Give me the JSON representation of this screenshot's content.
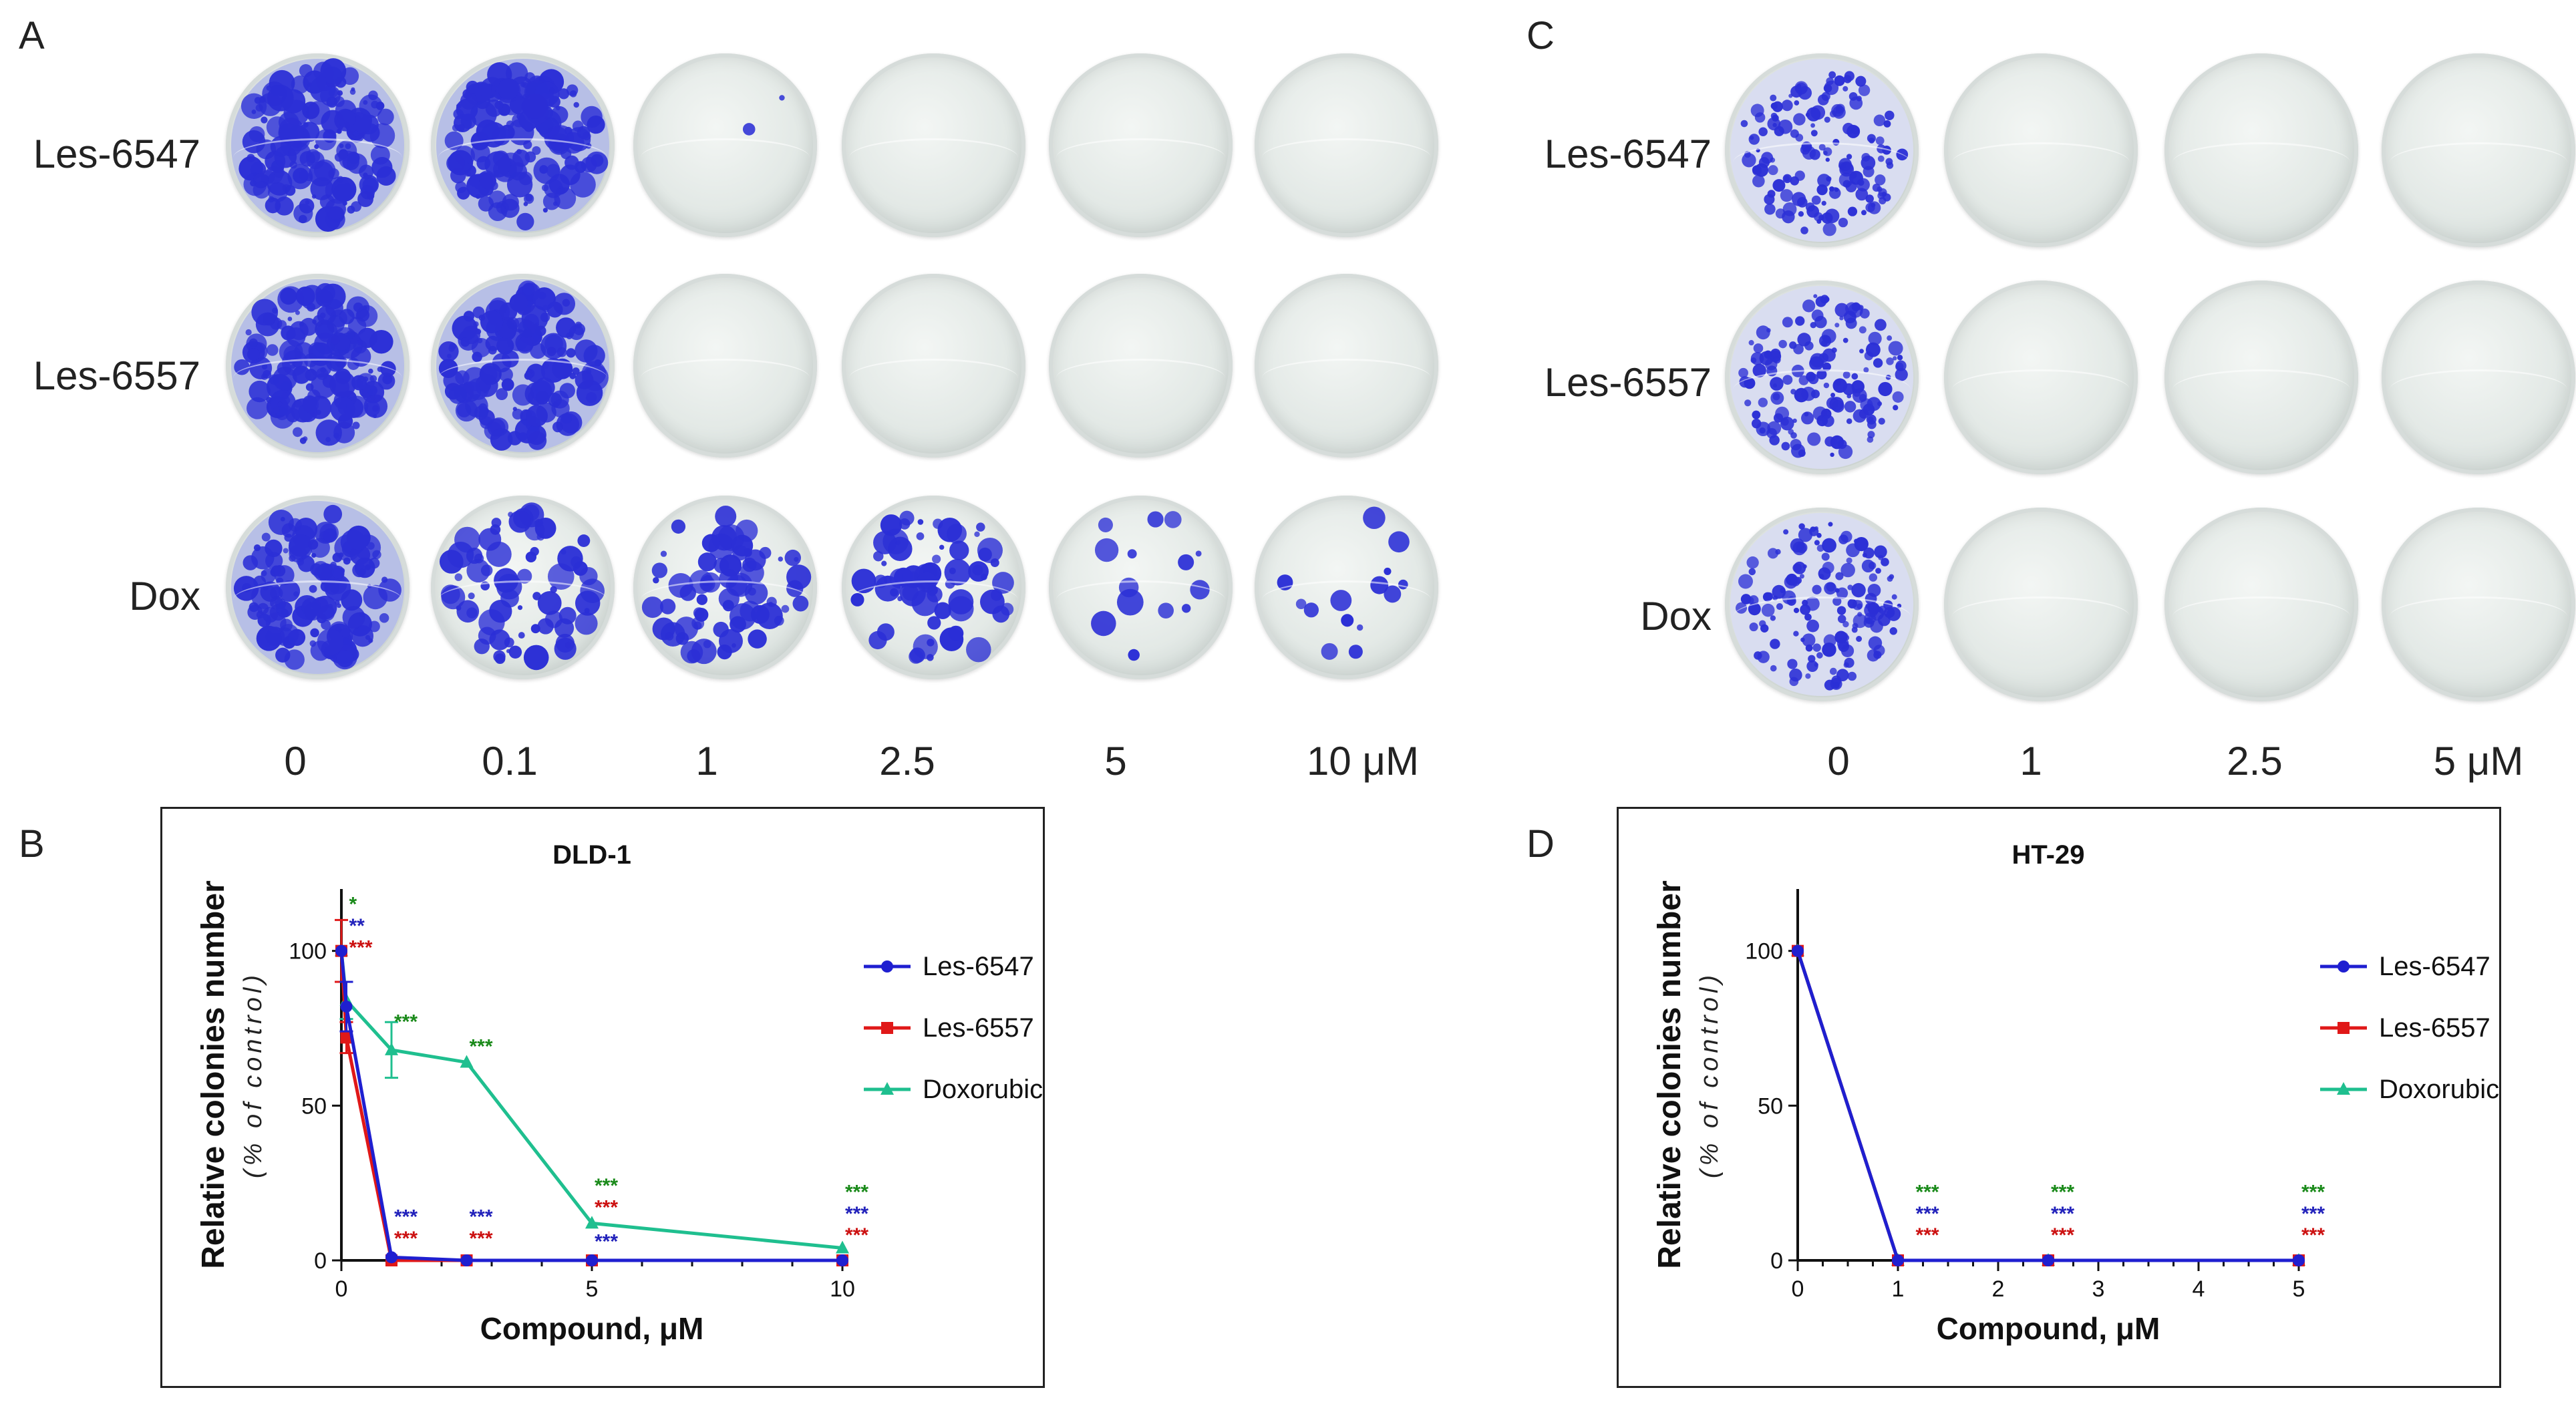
{
  "panels": {
    "a": {
      "letter": "A",
      "rows": [
        "Les-6547",
        "Les-6557",
        "Dox"
      ],
      "doses": [
        "0",
        "0.1",
        "1",
        "2.5",
        "5",
        "10 μM"
      ]
    },
    "b": {
      "letter": "B"
    },
    "c": {
      "letter": "C",
      "rows": [
        "Les-6547",
        "Les-6557",
        "Dox"
      ],
      "doses": [
        "0",
        "1",
        "2.5",
        "5 μM"
      ]
    },
    "d": {
      "letter": "D"
    }
  },
  "plate_colonies": {
    "a": [
      [
        "high",
        "high",
        "trace",
        "none",
        "none",
        "none"
      ],
      [
        "high",
        "high",
        "none",
        "none",
        "none",
        "none"
      ],
      [
        "high",
        "medium",
        "medium",
        "medium",
        "sparse",
        "sparse"
      ]
    ],
    "c": [
      [
        "high",
        "none",
        "none",
        "none"
      ],
      [
        "high",
        "none",
        "none",
        "none"
      ],
      [
        "high",
        "none",
        "none",
        "none"
      ]
    ]
  },
  "colors": {
    "stain": "#2b2fd6",
    "les6547": "#1f1fd0",
    "les6557": "#e01818",
    "doxorubicin": "#1fbf8f",
    "sig_green": "#1a8a1a",
    "sig_blue": "#2222bb",
    "sig_red": "#cc1111"
  },
  "chart_data": [
    {
      "panel": "B",
      "type": "line",
      "title": "DLD-1",
      "xlabel": "Compound, μM",
      "ylabel": "Relative colonies number",
      "ylabel2": "(% of control)",
      "xlim": [
        0,
        10
      ],
      "ylim": [
        0,
        120
      ],
      "xticks": [
        0,
        5,
        10
      ],
      "yticks": [
        0,
        50,
        100
      ],
      "series": [
        {
          "name": "Les-6547",
          "marker": "circle",
          "x": [
            0,
            0.1,
            1,
            2.5,
            5,
            10
          ],
          "y": [
            100,
            82,
            1,
            0,
            0,
            0
          ],
          "err": [
            0,
            8,
            0,
            0,
            0,
            0
          ]
        },
        {
          "name": "Les-6557",
          "marker": "square",
          "x": [
            0,
            0.1,
            1,
            2.5,
            5,
            10
          ],
          "y": [
            100,
            72,
            0,
            0,
            0,
            0
          ],
          "err": [
            10,
            5,
            0,
            0,
            0,
            0
          ]
        },
        {
          "name": "Doxorubicin",
          "marker": "triangle",
          "x": [
            0,
            0.1,
            1,
            2.5,
            5,
            10
          ],
          "y": [
            100,
            84,
            68,
            64,
            12,
            4
          ],
          "err": [
            0,
            6,
            9,
            0,
            0,
            0
          ]
        }
      ],
      "annotations": [
        {
          "x": 0.1,
          "y": 113,
          "text": "*",
          "color": "green"
        },
        {
          "x": 0.1,
          "y": 106,
          "text": "**",
          "color": "blue"
        },
        {
          "x": 0.1,
          "y": 99,
          "text": "***",
          "color": "red"
        },
        {
          "x": 1,
          "y": 75,
          "text": "***",
          "color": "green"
        },
        {
          "x": 2.5,
          "y": 67,
          "text": "***",
          "color": "green"
        },
        {
          "x": 1,
          "y": 12,
          "text": "***",
          "color": "blue"
        },
        {
          "x": 1,
          "y": 5,
          "text": "***",
          "color": "red"
        },
        {
          "x": 2.5,
          "y": 12,
          "text": "***",
          "color": "blue"
        },
        {
          "x": 2.5,
          "y": 5,
          "text": "***",
          "color": "red"
        },
        {
          "x": 5,
          "y": 22,
          "text": "***",
          "color": "green"
        },
        {
          "x": 5,
          "y": 15,
          "text": "***",
          "color": "red"
        },
        {
          "x": 5,
          "y": 4,
          "text": "***",
          "color": "blue"
        },
        {
          "x": 10,
          "y": 20,
          "text": "***",
          "color": "green"
        },
        {
          "x": 10,
          "y": 13,
          "text": "***",
          "color": "blue"
        },
        {
          "x": 10,
          "y": 6,
          "text": "***",
          "color": "red"
        }
      ]
    },
    {
      "panel": "D",
      "type": "line",
      "title": "HT-29",
      "xlabel": "Compound, μM",
      "ylabel": "Relative colonies number",
      "ylabel2": "(% of control)",
      "xlim": [
        0,
        5
      ],
      "ylim": [
        0,
        120
      ],
      "xticks": [
        0,
        1,
        2,
        3,
        4,
        5
      ],
      "yticks": [
        0,
        50,
        100
      ],
      "series": [
        {
          "name": "Les-6547",
          "marker": "circle",
          "x": [
            0,
            1,
            2.5,
            5
          ],
          "y": [
            100,
            0,
            0,
            0
          ],
          "err": [
            0,
            0,
            0,
            0
          ]
        },
        {
          "name": "Les-6557",
          "marker": "square",
          "x": [
            0,
            1,
            2.5,
            5
          ],
          "y": [
            100,
            0,
            0,
            0
          ],
          "err": [
            0,
            0,
            0,
            0
          ]
        },
        {
          "name": "Doxorubicin",
          "marker": "triangle",
          "x": [
            0,
            1,
            2.5,
            5
          ],
          "y": [
            100,
            0,
            0,
            0
          ],
          "err": [
            0,
            0,
            0,
            0
          ]
        }
      ],
      "annotations": [
        {
          "x": 1.15,
          "y": 20,
          "text": "***",
          "color": "green"
        },
        {
          "x": 1.15,
          "y": 13,
          "text": "***",
          "color": "blue"
        },
        {
          "x": 1.15,
          "y": 6,
          "text": "***",
          "color": "red"
        },
        {
          "x": 2.5,
          "y": 20,
          "text": "***",
          "color": "green"
        },
        {
          "x": 2.5,
          "y": 13,
          "text": "***",
          "color": "blue"
        },
        {
          "x": 2.5,
          "y": 6,
          "text": "***",
          "color": "red"
        },
        {
          "x": 5,
          "y": 20,
          "text": "***",
          "color": "green"
        },
        {
          "x": 5,
          "y": 13,
          "text": "***",
          "color": "blue"
        },
        {
          "x": 5,
          "y": 6,
          "text": "***",
          "color": "red"
        }
      ]
    }
  ]
}
